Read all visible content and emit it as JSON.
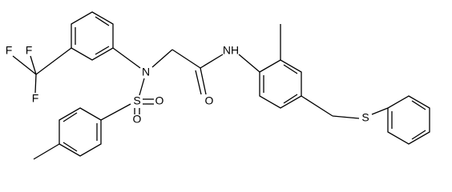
{
  "atoms": [
    {
      "label": "F"
    },
    {
      "label": "F"
    },
    {
      "label": "F"
    },
    {
      "label": "N"
    },
    {
      "label": "S"
    },
    {
      "label": "O"
    },
    {
      "label": "O"
    },
    {
      "label": "O"
    },
    {
      "label": "NH"
    },
    {
      "label": "S"
    }
  ]
}
